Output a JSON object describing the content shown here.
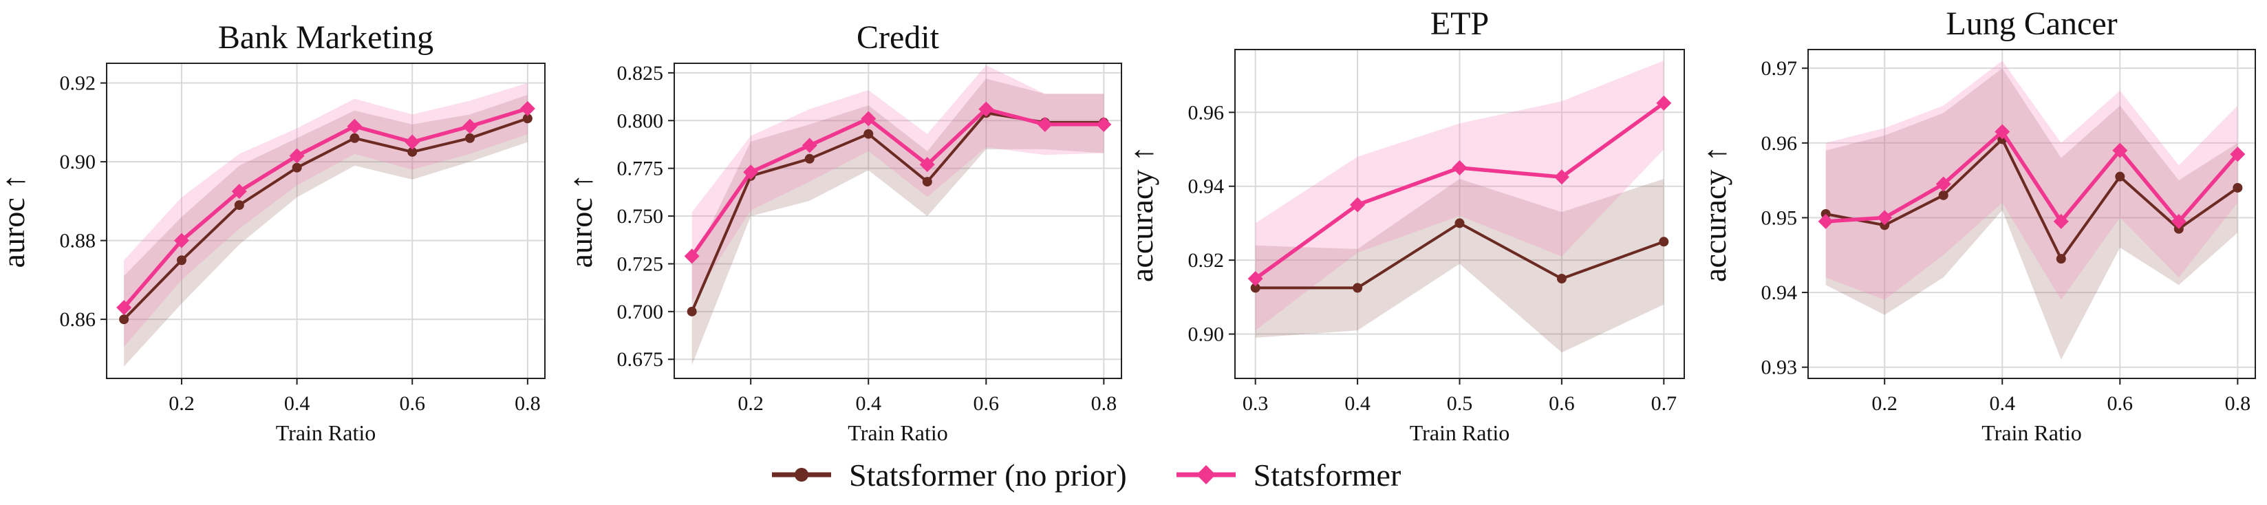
{
  "colors": {
    "no_prior": "#6B2A22",
    "statsformer": "#F0368F",
    "no_prior_band": "#8B5550",
    "statsformer_band": "#F58ABF"
  },
  "legend": [
    {
      "label": "Statsformer (no prior)",
      "color": "#6B2A22",
      "marker": "circle"
    },
    {
      "label": "Statsformer",
      "color": "#F0368F",
      "marker": "diamond"
    }
  ],
  "chart_data": [
    {
      "type": "line",
      "title": "Bank Marketing",
      "xlabel": "Train Ratio",
      "ylabel": "auroc",
      "ylabel_arrow": "↑",
      "xlim": [
        0.07,
        0.83
      ],
      "ylim": [
        0.845,
        0.925
      ],
      "xticks": [
        "0.2",
        "0.4",
        "0.6",
        "0.8"
      ],
      "yticks": [
        "0.86",
        "0.88",
        "0.90",
        "0.92"
      ],
      "x": [
        0.1,
        0.2,
        0.3,
        0.4,
        0.5,
        0.6,
        0.7,
        0.8
      ],
      "series": [
        {
          "name": "Statsformer (no prior)",
          "values": [
            0.86,
            0.875,
            0.889,
            0.8985,
            0.906,
            0.9025,
            0.906,
            0.911
          ],
          "lower": [
            0.848,
            0.864,
            0.879,
            0.891,
            0.899,
            0.8955,
            0.9,
            0.905
          ],
          "upper": [
            0.871,
            0.886,
            0.899,
            0.906,
            0.913,
            0.9095,
            0.912,
            0.917
          ]
        },
        {
          "name": "Statsformer",
          "values": [
            0.863,
            0.88,
            0.8925,
            0.9015,
            0.909,
            0.905,
            0.909,
            0.9135
          ],
          "lower": [
            0.853,
            0.87,
            0.883,
            0.894,
            0.902,
            0.898,
            0.902,
            0.907
          ],
          "upper": [
            0.875,
            0.891,
            0.902,
            0.9085,
            0.916,
            0.912,
            0.9155,
            0.92
          ]
        }
      ]
    },
    {
      "type": "line",
      "title": "Credit",
      "xlabel": "Train Ratio",
      "ylabel": "auroc",
      "ylabel_arrow": "↑",
      "xlim": [
        0.07,
        0.83
      ],
      "ylim": [
        0.665,
        0.83
      ],
      "xticks": [
        "0.2",
        "0.4",
        "0.6",
        "0.8"
      ],
      "yticks": [
        "0.675",
        "0.700",
        "0.725",
        "0.750",
        "0.775",
        "0.800",
        "0.825"
      ],
      "x": [
        0.1,
        0.2,
        0.3,
        0.4,
        0.5,
        0.6,
        0.7,
        0.8
      ],
      "series": [
        {
          "name": "Statsformer (no prior)",
          "values": [
            0.7,
            0.771,
            0.78,
            0.793,
            0.768,
            0.804,
            0.799,
            0.799
          ],
          "lower": [
            0.672,
            0.75,
            0.758,
            0.774,
            0.75,
            0.785,
            0.785,
            0.783
          ],
          "upper": [
            0.725,
            0.789,
            0.798,
            0.808,
            0.784,
            0.822,
            0.814,
            0.814
          ]
        },
        {
          "name": "Statsformer",
          "values": [
            0.729,
            0.773,
            0.787,
            0.801,
            0.777,
            0.806,
            0.798,
            0.798
          ],
          "lower": [
            0.705,
            0.753,
            0.768,
            0.784,
            0.76,
            0.786,
            0.782,
            0.783
          ],
          "upper": [
            0.752,
            0.792,
            0.806,
            0.816,
            0.793,
            0.829,
            0.814,
            0.814
          ]
        }
      ]
    },
    {
      "type": "line",
      "title": "ETP",
      "xlabel": "Train Ratio",
      "ylabel": "accuracy",
      "ylabel_arrow": "↑",
      "xlim": [
        0.28,
        0.72
      ],
      "ylim": [
        0.888,
        0.977
      ],
      "xticks": [
        "0.3",
        "0.4",
        "0.5",
        "0.6",
        "0.7"
      ],
      "yticks": [
        "0.90",
        "0.92",
        "0.94",
        "0.96"
      ],
      "x": [
        0.3,
        0.4,
        0.5,
        0.6,
        0.7
      ],
      "series": [
        {
          "name": "Statsformer (no prior)",
          "values": [
            0.9125,
            0.9125,
            0.93,
            0.915,
            0.925
          ],
          "lower": [
            0.899,
            0.901,
            0.919,
            0.895,
            0.908
          ],
          "upper": [
            0.924,
            0.923,
            0.942,
            0.933,
            0.942
          ]
        },
        {
          "name": "Statsformer",
          "values": [
            0.915,
            0.935,
            0.945,
            0.9425,
            0.9625
          ],
          "lower": [
            0.901,
            0.922,
            0.932,
            0.921,
            0.95
          ],
          "upper": [
            0.93,
            0.948,
            0.957,
            0.963,
            0.974
          ]
        }
      ]
    },
    {
      "type": "line",
      "title": "Lung Cancer",
      "xlabel": "Train Ratio",
      "ylabel": "accuracy",
      "ylabel_arrow": "↑",
      "xlim": [
        0.07,
        0.83
      ],
      "ylim": [
        0.9285,
        0.9725
      ],
      "xticks": [
        "0.2",
        "0.4",
        "0.6",
        "0.8"
      ],
      "yticks": [
        "0.93",
        "0.94",
        "0.95",
        "0.96",
        "0.97"
      ],
      "x": [
        0.1,
        0.2,
        0.3,
        0.4,
        0.5,
        0.6,
        0.7,
        0.8
      ],
      "series": [
        {
          "name": "Statsformer (no prior)",
          "values": [
            0.9505,
            0.949,
            0.953,
            0.9605,
            0.9445,
            0.9555,
            0.9485,
            0.954
          ],
          "lower": [
            0.941,
            0.937,
            0.942,
            0.951,
            0.931,
            0.946,
            0.941,
            0.948
          ],
          "upper": [
            0.959,
            0.961,
            0.964,
            0.97,
            0.958,
            0.965,
            0.955,
            0.96
          ]
        },
        {
          "name": "Statsformer",
          "values": [
            0.9495,
            0.95,
            0.9545,
            0.9615,
            0.9495,
            0.959,
            0.9495,
            0.9585
          ],
          "lower": [
            0.942,
            0.939,
            0.945,
            0.952,
            0.939,
            0.95,
            0.942,
            0.952
          ],
          "upper": [
            0.96,
            0.962,
            0.965,
            0.971,
            0.96,
            0.967,
            0.957,
            0.965
          ]
        }
      ]
    }
  ]
}
